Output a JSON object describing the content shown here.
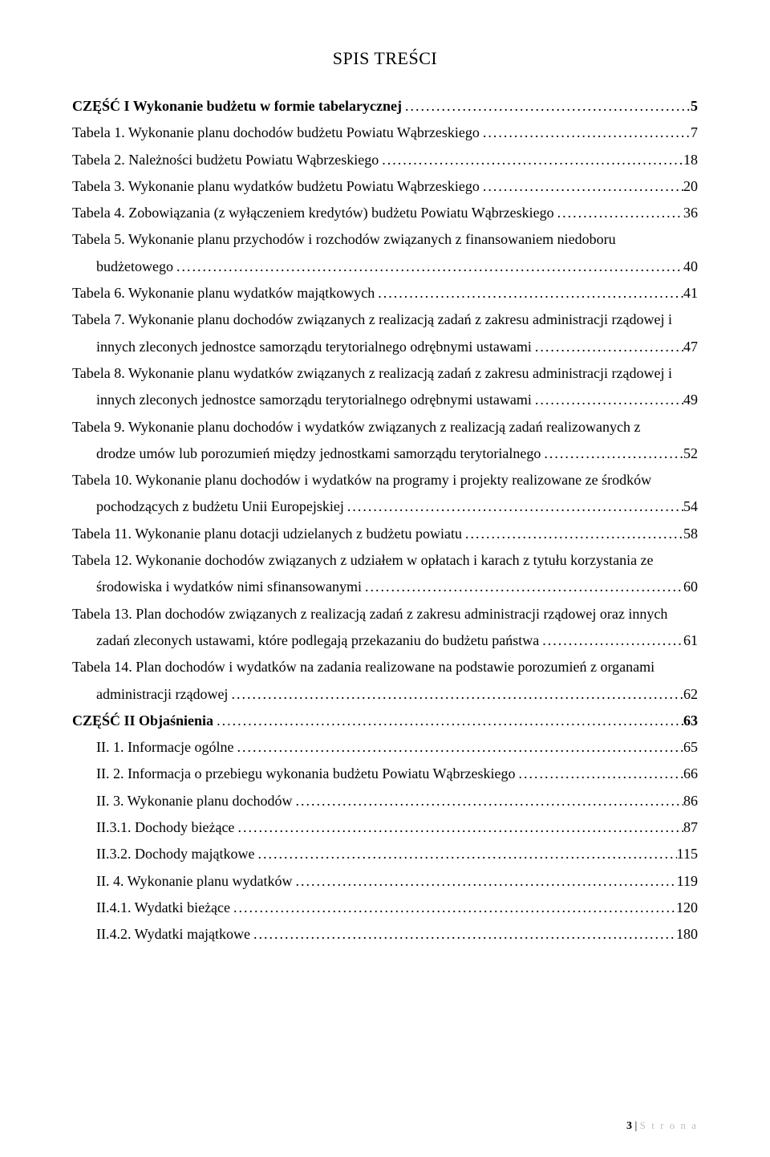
{
  "title": "SPIS TREŚCI",
  "entries": [
    {
      "type": "single",
      "bold": true,
      "text": "CZĘŚĆ I   Wykonanie budżetu w formie tabelarycznej",
      "page": "5",
      "indent": false
    },
    {
      "type": "single",
      "bold": false,
      "text": "Tabela 1. Wykonanie planu dochodów budżetu Powiatu Wąbrzeskiego",
      "page": "7",
      "indent": false
    },
    {
      "type": "single",
      "bold": false,
      "text": "Tabela 2. Należności budżetu Powiatu Wąbrzeskiego",
      "page": "18",
      "indent": false
    },
    {
      "type": "single",
      "bold": false,
      "text": "Tabela 3. Wykonanie planu wydatków budżetu Powiatu Wąbrzeskiego",
      "page": "20",
      "indent": false
    },
    {
      "type": "single",
      "bold": false,
      "text": "Tabela 4. Zobowiązania (z wyłączeniem kredytów) budżetu Powiatu Wąbrzeskiego",
      "page": "36",
      "indent": false
    },
    {
      "type": "multi",
      "bold": false,
      "first": "Tabela 5. Wykonanie planu przychodów i rozchodów związanych z finansowaniem niedoboru",
      "last": "budżetowego",
      "page": "40",
      "indent": true
    },
    {
      "type": "single",
      "bold": false,
      "text": "Tabela 6. Wykonanie planu wydatków majątkowych",
      "page": "41",
      "indent": false
    },
    {
      "type": "multi",
      "bold": false,
      "first": "Tabela 7. Wykonanie planu dochodów związanych z realizacją zadań z zakresu administracji rządowej i",
      "last": "innych zleconych jednostce samorządu terytorialnego odrębnymi ustawami",
      "page": "47",
      "indent": true
    },
    {
      "type": "multi",
      "bold": false,
      "first": "Tabela 8. Wykonanie planu wydatków związanych z realizacją zadań z zakresu administracji rządowej i",
      "last": "innych zleconych jednostce samorządu terytorialnego odrębnymi ustawami",
      "page": "49",
      "indent": true
    },
    {
      "type": "multi",
      "bold": false,
      "first": "Tabela 9. Wykonanie planu dochodów i wydatków związanych z realizacją zadań realizowanych z",
      "last": "drodze umów lub porozumień między jednostkami samorządu terytorialnego",
      "page": "52",
      "indent": true
    },
    {
      "type": "multi",
      "bold": false,
      "first": "Tabela 10. Wykonanie planu dochodów i wydatków na programy i projekty realizowane ze środków",
      "last": "pochodzących z budżetu Unii Europejskiej",
      "page": "54",
      "indent": true
    },
    {
      "type": "single",
      "bold": false,
      "text": "Tabela 11. Wykonanie planu dotacji udzielanych z budżetu powiatu",
      "page": "58",
      "indent": false
    },
    {
      "type": "multi",
      "bold": false,
      "first": "Tabela 12. Wykonanie dochodów związanych z udziałem w opłatach i karach z tytułu korzystania ze",
      "last": "środowiska i wydatków nimi sfinansowanymi",
      "page": "60",
      "indent": true
    },
    {
      "type": "multi",
      "bold": false,
      "first": "Tabela 13. Plan dochodów związanych z realizacją zadań z zakresu administracji rządowej oraz innych",
      "last": "zadań zleconych ustawami, które podlegają przekazaniu do budżetu państwa",
      "page": "61",
      "indent": true
    },
    {
      "type": "multi",
      "bold": false,
      "first": "Tabela 14. Plan dochodów i wydatków na zadania realizowane na podstawie porozumień z organami",
      "last": "administracji rządowej",
      "page": "62",
      "indent": true
    },
    {
      "type": "single",
      "bold": true,
      "text": "CZĘŚĆ II   Objaśnienia",
      "page": "63",
      "indent": false
    },
    {
      "type": "single",
      "bold": false,
      "text": "II. 1. Informacje ogólne",
      "page": "65",
      "indent": true
    },
    {
      "type": "single",
      "bold": false,
      "text": "II. 2. Informacja o przebiegu wykonania budżetu Powiatu Wąbrzeskiego",
      "page": "66",
      "indent": true
    },
    {
      "type": "single",
      "bold": false,
      "text": "II. 3. Wykonanie planu dochodów",
      "page": "86",
      "indent": true
    },
    {
      "type": "single",
      "bold": false,
      "text": "II.3.1. Dochody bieżące",
      "page": "87",
      "indent": true
    },
    {
      "type": "single",
      "bold": false,
      "text": "II.3.2. Dochody majątkowe",
      "page": "115",
      "indent": true
    },
    {
      "type": "single",
      "bold": false,
      "text": "II. 4. Wykonanie planu wydatków",
      "page": "119",
      "indent": true
    },
    {
      "type": "single",
      "bold": false,
      "text": "II.4.1. Wydatki bieżące",
      "page": "120",
      "indent": true
    },
    {
      "type": "single",
      "bold": false,
      "text": "II.4.2. Wydatki majątkowe",
      "page": "180",
      "indent": true
    }
  ],
  "footer": {
    "page_number": "3",
    "separator": " | ",
    "label": "S t r o n a"
  }
}
